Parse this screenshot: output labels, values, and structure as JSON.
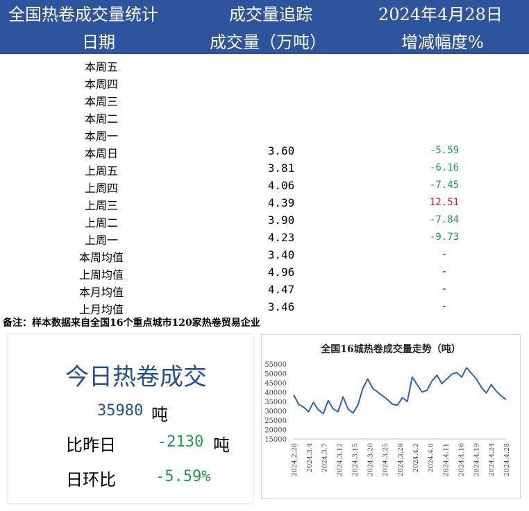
{
  "header": {
    "title": "全国热卷成交量统计",
    "track": "成交量追踪",
    "date": "2024年4月28日",
    "col_date": "日期",
    "col_volume": "成交量（万吨）",
    "col_change": "增减幅度%"
  },
  "rows": [
    {
      "day": "本周五",
      "volume": "",
      "change": "",
      "trend": ""
    },
    {
      "day": "本周四",
      "volume": "",
      "change": "",
      "trend": ""
    },
    {
      "day": "本周三",
      "volume": "",
      "change": "",
      "trend": ""
    },
    {
      "day": "本周二",
      "volume": "",
      "change": "",
      "trend": ""
    },
    {
      "day": "本周一",
      "volume": "",
      "change": "",
      "trend": ""
    },
    {
      "day": "本周日",
      "volume": "3.60",
      "change": "-5.59",
      "trend": "neg"
    },
    {
      "day": "上周五",
      "volume": "3.81",
      "change": "-6.16",
      "trend": "neg"
    },
    {
      "day": "上周四",
      "volume": "4.06",
      "change": "-7.45",
      "trend": "neg"
    },
    {
      "day": "上周三",
      "volume": "4.39",
      "change": "12.51",
      "trend": "pos"
    },
    {
      "day": "上周二",
      "volume": "3.90",
      "change": "-7.84",
      "trend": "neg"
    },
    {
      "day": "上周一",
      "volume": "4.23",
      "change": "-9.73",
      "trend": "neg"
    },
    {
      "day": "本周均值",
      "volume": "3.40",
      "change": "-",
      "trend": ""
    },
    {
      "day": "上周均值",
      "volume": "4.96",
      "change": "-",
      "trend": ""
    },
    {
      "day": "本月均值",
      "volume": "4.47",
      "change": "-",
      "trend": ""
    },
    {
      "day": "上月均值",
      "volume": "3.46",
      "change": "-",
      "trend": ""
    }
  ],
  "note": "备注：样本数据来自全国16个重点城市120家热卷贸易企业",
  "summary": {
    "title": "今日热卷成交",
    "today_value": "35980",
    "today_unit": "吨",
    "vs_label": "比昨日",
    "vs_value": "-2130",
    "vs_unit": "吨",
    "ratio_label": "日环比",
    "ratio_value": "-5.59%"
  },
  "colors": {
    "header_bg": "#2f549e",
    "negative": "#1c9a4a",
    "positive": "#d0181c",
    "line": "#2f5fb3",
    "summary_blue": "#24508f"
  },
  "chart_data": {
    "type": "line",
    "title": "全国16城热卷成交量走势（吨）",
    "ylim": [
      15000,
      55000
    ],
    "yticks": [
      15000,
      20000,
      25000,
      30000,
      35000,
      40000,
      45000,
      50000,
      55000
    ],
    "xtick_labels": [
      "2024.2.28",
      "2024.3.4",
      "2024.3.7",
      "2024.3.12",
      "2024.3.15",
      "2024.3.20",
      "2024.3.25",
      "2024.3.28",
      "2024.4.2",
      "2024.4.8",
      "2024.4.11",
      "2024.4.16",
      "2024.4.19",
      "2024.4.24",
      "2024.4.28"
    ],
    "series": [
      {
        "values": [
          38500,
          33500,
          32000,
          29500,
          34500,
          30500,
          28500,
          35500,
          31000,
          29500,
          37500,
          31000,
          28800,
          33000,
          42000,
          47000,
          42000,
          40000,
          38000,
          36000,
          33500,
          33000,
          37000,
          35000,
          48000,
          44000,
          40000,
          41000,
          46000,
          49000,
          44500,
          47000,
          49500,
          50500,
          48000,
          53000,
          50000,
          47000,
          42500,
          39500,
          44000,
          40500,
          38000,
          36000
        ]
      }
    ]
  }
}
